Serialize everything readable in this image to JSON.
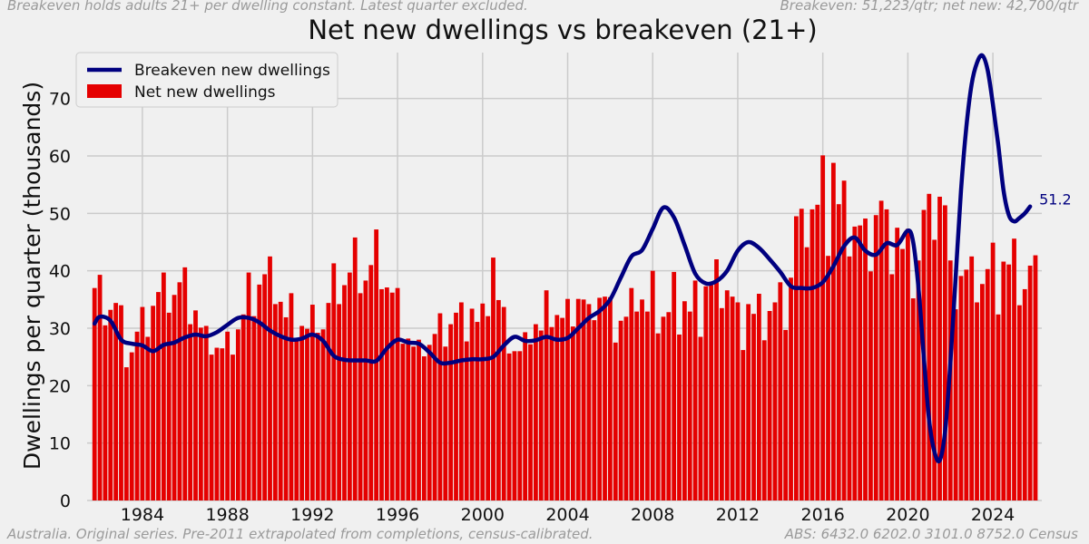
{
  "header": {
    "note_left": "Breakeven holds adults 21+ per dwelling constant. Latest quarter excluded.",
    "note_right": "Breakeven: 51,223/qtr;  net new: 42,700/qtr"
  },
  "footer": {
    "note_left": "Australia. Original series. Pre-2011 extrapolated from completions, census-calibrated.",
    "note_right": "ABS: 6432.0 6202.0 3101.0 8752.0 Census"
  },
  "colors": {
    "bar": "#e50000",
    "line": "#00007f",
    "grid": "#cbcbcb",
    "background": "#f0f0f0"
  },
  "chart_data": {
    "type": "bar",
    "title": "Net new dwellings vs breakeven (21+)",
    "ylabel": "Dwellings per quarter (thousands)",
    "xlabel": "",
    "ylim": [
      0,
      78
    ],
    "xlim": [
      1981.4,
      2026.3
    ],
    "yticks": [
      0,
      10,
      20,
      30,
      40,
      50,
      60,
      70
    ],
    "xticks": [
      1984,
      1988,
      1992,
      1996,
      2000,
      2004,
      2008,
      2012,
      2016,
      2020,
      2024
    ],
    "grid": true,
    "legend_position": "top-left",
    "end_label": "51.2",
    "series": [
      {
        "name": "Net new dwellings",
        "type": "bar",
        "x_start": 1981.75,
        "step": 0.25,
        "values": [
          37,
          39.3,
          30.5,
          33.2,
          34.4,
          34,
          23.2,
          25.8,
          29.4,
          33.7,
          28.5,
          33.9,
          36.3,
          39.7,
          32.7,
          35.8,
          38,
          40.6,
          30.7,
          33.1,
          30.1,
          30.4,
          25.4,
          26.6,
          26.5,
          29.4,
          25.4,
          29.8,
          32.4,
          39.7,
          32.1,
          37.6,
          39.4,
          42.5,
          34.2,
          34.6,
          31.9,
          36.1,
          28.1,
          30.4,
          29.9,
          34.1,
          29.2,
          29.8,
          34.4,
          41.3,
          34.2,
          37.5,
          39.7,
          45.8,
          36.1,
          38.3,
          41,
          47.2,
          36.8,
          37.1,
          36.2,
          37,
          27.3,
          28.2,
          26.8,
          28,
          25.1,
          27.1,
          29,
          32.6,
          26.8,
          30.7,
          32.7,
          34.5,
          27.7,
          33.4,
          31.1,
          34.3,
          32.1,
          42.3,
          34.9,
          33.7,
          25.6,
          26,
          26,
          29.3,
          27.2,
          30.7,
          29.6,
          36.6,
          30.2,
          32.3,
          31.8,
          35.1,
          30.3,
          35.1,
          35,
          34.2,
          31.4,
          35.3,
          35.5,
          35.4,
          27.5,
          31.3,
          32,
          37,
          32.9,
          35,
          32.9,
          40,
          29.1,
          32,
          32.8,
          39.8,
          28.9,
          34.7,
          32.9,
          38.3,
          28.5,
          37.3,
          37.5,
          42,
          33.5,
          36.6,
          35.5,
          34.5,
          26.2,
          34.2,
          32.5,
          36,
          27.9,
          33,
          34.5,
          38,
          29.7,
          38.8,
          49.5,
          50.8,
          44.1,
          50.7,
          51.5,
          60.1,
          42.6,
          58.8,
          51.6,
          55.7,
          42.5,
          47.7,
          47.9,
          49.1,
          39.9,
          49.7,
          52.2,
          50.7,
          39.4,
          47.5,
          43.8,
          47.3,
          35.2,
          41.8,
          50.6,
          53.4,
          45.4,
          52.9,
          51.4,
          41.8,
          33.3,
          39.1,
          40.2,
          42.5,
          34.5,
          37.7,
          40.3,
          44.9,
          32.4,
          41.6,
          41.1,
          45.6,
          34,
          36.8,
          40.9,
          42.7
        ]
      },
      {
        "name": "Breakeven new dwellings",
        "type": "line",
        "points": [
          [
            1981.75,
            30.8
          ],
          [
            1982,
            32
          ],
          [
            1982.5,
            31.3
          ],
          [
            1983,
            28
          ],
          [
            1983.5,
            27.3
          ],
          [
            1984,
            27
          ],
          [
            1984.5,
            26
          ],
          [
            1985,
            27.1
          ],
          [
            1985.5,
            27.5
          ],
          [
            1986,
            28.4
          ],
          [
            1986.5,
            28.9
          ],
          [
            1987,
            28.6
          ],
          [
            1987.5,
            29.3
          ],
          [
            1988,
            30.6
          ],
          [
            1988.5,
            31.8
          ],
          [
            1989,
            31.8
          ],
          [
            1989.5,
            31
          ],
          [
            1990,
            29.6
          ],
          [
            1990.5,
            28.6
          ],
          [
            1991,
            28
          ],
          [
            1991.5,
            28.2
          ],
          [
            1992,
            28.9
          ],
          [
            1992.5,
            27.8
          ],
          [
            1993,
            25.2
          ],
          [
            1993.5,
            24.5
          ],
          [
            1994,
            24.4
          ],
          [
            1994.5,
            24.4
          ],
          [
            1995,
            24.3
          ],
          [
            1995.5,
            26.5
          ],
          [
            1996,
            28
          ],
          [
            1996.5,
            27.5
          ],
          [
            1997,
            27.3
          ],
          [
            1997.5,
            25.8
          ],
          [
            1998,
            24
          ],
          [
            1998.5,
            24
          ],
          [
            1999,
            24.4
          ],
          [
            1999.5,
            24.6
          ],
          [
            2000,
            24.6
          ],
          [
            2000.5,
            25
          ],
          [
            2001,
            27
          ],
          [
            2001.5,
            28.5
          ],
          [
            2002,
            27.8
          ],
          [
            2002.5,
            27.9
          ],
          [
            2003,
            28.5
          ],
          [
            2003.5,
            28
          ],
          [
            2004,
            28.3
          ],
          [
            2004.5,
            30
          ],
          [
            2005,
            31.8
          ],
          [
            2005.5,
            33
          ],
          [
            2006,
            35
          ],
          [
            2006.5,
            38.8
          ],
          [
            2007,
            42.5
          ],
          [
            2007.5,
            43.6
          ],
          [
            2008,
            47.3
          ],
          [
            2008.5,
            51
          ],
          [
            2009,
            49.3
          ],
          [
            2009.5,
            44.5
          ],
          [
            2010,
            39.5
          ],
          [
            2010.5,
            37.8
          ],
          [
            2011,
            38.2
          ],
          [
            2011.5,
            40
          ],
          [
            2012,
            43.5
          ],
          [
            2012.5,
            45
          ],
          [
            2013,
            44
          ],
          [
            2013.5,
            42
          ],
          [
            2014,
            39.8
          ],
          [
            2014.5,
            37.3
          ],
          [
            2015,
            37
          ],
          [
            2015.5,
            37
          ],
          [
            2016,
            38
          ],
          [
            2016.5,
            40.8
          ],
          [
            2017,
            44.3
          ],
          [
            2017.5,
            45.8
          ],
          [
            2018,
            43.5
          ],
          [
            2018.5,
            42.8
          ],
          [
            2019,
            44.8
          ],
          [
            2019.5,
            44.5
          ],
          [
            2020,
            47
          ],
          [
            2020.25,
            45
          ],
          [
            2020.5,
            37
          ],
          [
            2020.75,
            25
          ],
          [
            2021,
            14
          ],
          [
            2021.25,
            8.5
          ],
          [
            2021.5,
            7
          ],
          [
            2021.75,
            12
          ],
          [
            2022,
            24
          ],
          [
            2022.25,
            39
          ],
          [
            2022.5,
            54
          ],
          [
            2022.75,
            65
          ],
          [
            2023,
            72.5
          ],
          [
            2023.25,
            76.2
          ],
          [
            2023.5,
            77.5
          ],
          [
            2023.75,
            75
          ],
          [
            2024,
            69
          ],
          [
            2024.25,
            62
          ],
          [
            2024.5,
            54
          ],
          [
            2024.75,
            49.7
          ],
          [
            2025,
            48.6
          ],
          [
            2025.25,
            49.2
          ],
          [
            2025.5,
            50
          ],
          [
            2025.75,
            51.2
          ]
        ]
      }
    ]
  }
}
